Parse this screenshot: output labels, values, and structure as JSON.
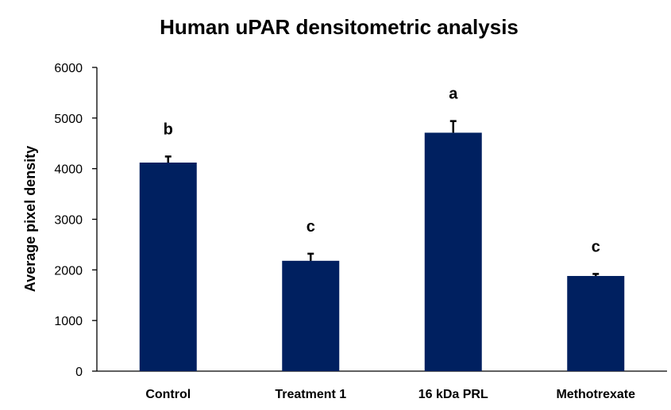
{
  "chart_data": {
    "type": "bar",
    "title": "Human uPAR densitometric analysis",
    "xlabel": "",
    "ylabel": "Average pixel density",
    "categories": [
      "Control",
      "Treatment 1",
      "16 kDa PRL",
      "Methotrexate"
    ],
    "values": [
      4120,
      2180,
      4710,
      1880
    ],
    "error": [
      120,
      140,
      230,
      40
    ],
    "significance_labels": [
      "b",
      "c",
      "a",
      "c"
    ],
    "ylim": [
      0,
      6000
    ],
    "yticks": [
      0,
      1000,
      2000,
      3000,
      4000,
      5000,
      6000
    ],
    "ytick_labels": [
      "0",
      "1000",
      "2000",
      "3000",
      "4000",
      "5000",
      "6000"
    ],
    "bar_color": "#002060",
    "grid": false,
    "legend": "none"
  }
}
